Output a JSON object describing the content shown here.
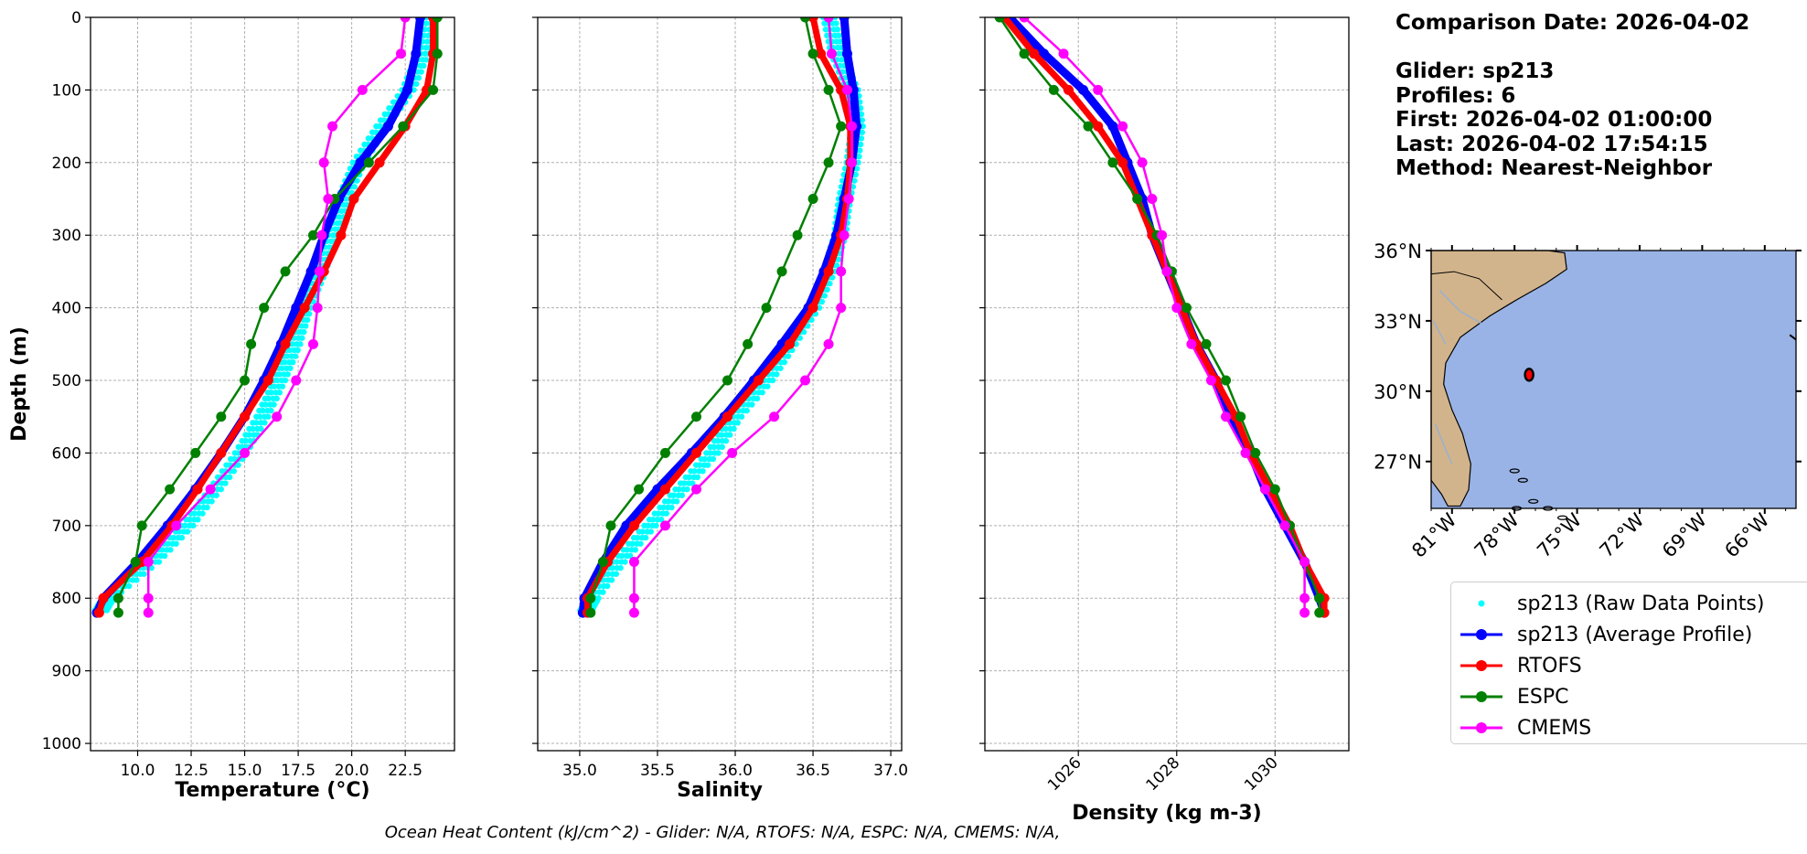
{
  "info": {
    "comparison_date": "Comparison Date: 2026-04-02",
    "glider": "Glider: sp213",
    "profiles": "Profiles: 6",
    "first": "First: 2026-04-02 01:00:00",
    "last": "Last: 2026-04-02 17:54:15",
    "method": "Method: Nearest-Neighbor"
  },
  "footer": "Ocean Heat Content (kJ/cm^2) - Glider: N/A,  RTOFS: N/A,  ESPC: N/A,  CMEMS: N/A,",
  "colors": {
    "glider_raw": "#00ffff",
    "glider_avg": "#0000ff",
    "rtofs": "#ff0000",
    "espc": "#008000",
    "cmems": "#ff00ff",
    "land": "#d2b48c",
    "ocean": "#99b3e6"
  },
  "legend": [
    {
      "label": "sp213 (Raw Data Points)",
      "color": "#00ffff",
      "style": "dot"
    },
    {
      "label": "sp213 (Average Profile)",
      "color": "#0000ff",
      "style": "line-marker"
    },
    {
      "label": "RTOFS",
      "color": "#ff0000",
      "style": "line-marker"
    },
    {
      "label": "ESPC",
      "color": "#008000",
      "style": "line-marker"
    },
    {
      "label": "CMEMS",
      "color": "#ff00ff",
      "style": "line-marker"
    }
  ],
  "chart_data": [
    {
      "type": "line",
      "xlabel": "Temperature (°C)",
      "ylabel": "Depth (m)",
      "xlim": [
        7.8,
        24.8
      ],
      "ylim": [
        1010,
        0
      ],
      "xticks": [
        "10.0",
        "12.5",
        "15.0",
        "17.5",
        "20.0",
        "22.5"
      ],
      "yticks": [
        "0",
        "100",
        "200",
        "300",
        "400",
        "500",
        "600",
        "700",
        "800",
        "900",
        "1000"
      ],
      "grid": true,
      "depth": [
        0,
        50,
        100,
        150,
        200,
        250,
        300,
        350,
        400,
        450,
        500,
        550,
        600,
        650,
        700,
        750,
        800,
        820
      ],
      "series": [
        {
          "name": "sp213 (Raw Data Points)",
          "values": [
            23.6,
            23.3,
            22.6,
            21.4,
            20.3,
            19.6,
            19.0,
            18.5,
            17.8,
            17.3,
            16.6,
            15.8,
            14.8,
            13.6,
            12.3,
            10.7,
            8.6,
            8.2
          ]
        },
        {
          "name": "sp213 (Average Profile)",
          "values": [
            23.2,
            23.0,
            22.6,
            21.7,
            20.4,
            19.4,
            18.7,
            18.1,
            17.4,
            16.7,
            15.9,
            15.0,
            13.9,
            12.7,
            11.4,
            10.0,
            8.4,
            8.1
          ]
        },
        {
          "name": "RTOFS",
          "values": [
            23.8,
            23.8,
            23.5,
            22.5,
            21.3,
            20.1,
            19.5,
            18.7,
            17.8,
            16.9,
            16.1,
            15.0,
            13.9,
            12.8,
            11.6,
            10.2,
            8.4,
            8.2
          ]
        },
        {
          "name": "ESPC",
          "values": [
            24.0,
            24.0,
            23.8,
            22.4,
            20.8,
            19.2,
            18.2,
            16.9,
            15.9,
            15.3,
            15.0,
            13.9,
            12.7,
            11.5,
            10.2,
            9.9,
            9.1,
            9.1
          ]
        },
        {
          "name": "CMEMS",
          "values": [
            22.5,
            22.3,
            20.5,
            19.1,
            18.7,
            18.9,
            18.6,
            18.5,
            18.4,
            18.2,
            17.4,
            16.5,
            15.0,
            13.4,
            11.8,
            10.5,
            10.5,
            10.5
          ]
        }
      ]
    },
    {
      "type": "line",
      "xlabel": "Salinity",
      "xlim": [
        34.73,
        37.07
      ],
      "ylim": [
        1010,
        0
      ],
      "xticks": [
        "35.0",
        "35.5",
        "36.0",
        "36.5",
        "37.0"
      ],
      "grid": true,
      "depth": [
        0,
        50,
        100,
        150,
        200,
        250,
        300,
        350,
        400,
        450,
        500,
        550,
        600,
        650,
        700,
        750,
        800,
        820
      ],
      "series": [
        {
          "name": "sp213 (Raw Data Points)",
          "values": [
            36.6,
            36.65,
            36.75,
            36.78,
            36.75,
            36.7,
            36.67,
            36.6,
            36.5,
            36.35,
            36.2,
            36.0,
            35.85,
            35.65,
            35.45,
            35.25,
            35.08,
            35.03
          ]
        },
        {
          "name": "sp213 (Average Profile)",
          "values": [
            36.7,
            36.72,
            36.76,
            36.78,
            36.75,
            36.7,
            36.65,
            36.57,
            36.47,
            36.3,
            36.12,
            35.93,
            35.72,
            35.5,
            35.3,
            35.15,
            35.03,
            35.02
          ]
        },
        {
          "name": "RTOFS",
          "values": [
            36.5,
            36.55,
            36.68,
            36.74,
            36.74,
            36.72,
            36.68,
            36.6,
            36.5,
            36.35,
            36.15,
            35.95,
            35.75,
            35.55,
            35.35,
            35.18,
            35.05,
            35.05
          ]
        },
        {
          "name": "ESPC",
          "values": [
            36.45,
            36.5,
            36.6,
            36.68,
            36.6,
            36.5,
            36.4,
            36.3,
            36.2,
            36.08,
            35.95,
            35.75,
            35.55,
            35.38,
            35.2,
            35.15,
            35.07,
            35.07
          ]
        },
        {
          "name": "CMEMS",
          "values": [
            36.6,
            36.62,
            36.72,
            36.75,
            36.75,
            36.73,
            36.7,
            36.68,
            36.68,
            36.6,
            36.45,
            36.25,
            35.98,
            35.75,
            35.55,
            35.35,
            35.35,
            35.35
          ]
        }
      ]
    },
    {
      "type": "line",
      "xlabel": "Density (kg m-3)",
      "xlim": [
        1024.1,
        1031.5
      ],
      "ylim": [
        1010,
        0
      ],
      "xticks": [
        "1026",
        "1028",
        "1030"
      ],
      "grid": true,
      "depth": [
        0,
        50,
        100,
        150,
        200,
        250,
        300,
        350,
        400,
        450,
        500,
        550,
        600,
        650,
        700,
        750,
        800,
        820
      ],
      "series": [
        {
          "name": "sp213 (Average Profile)",
          "values": [
            1024.6,
            1025.3,
            1026.1,
            1026.7,
            1027.0,
            1027.3,
            1027.5,
            1027.8,
            1028.1,
            1028.4,
            1028.8,
            1029.1,
            1029.5,
            1029.8,
            1030.2,
            1030.6,
            1030.9,
            1031.0
          ]
        },
        {
          "name": "RTOFS",
          "values": [
            1024.5,
            1025.1,
            1025.8,
            1026.4,
            1026.9,
            1027.2,
            1027.5,
            1027.8,
            1028.1,
            1028.4,
            1028.8,
            1029.2,
            1029.5,
            1029.9,
            1030.3,
            1030.6,
            1031.0,
            1031.0
          ]
        },
        {
          "name": "ESPC",
          "values": [
            1024.4,
            1024.9,
            1025.5,
            1026.2,
            1026.7,
            1027.2,
            1027.6,
            1027.9,
            1028.2,
            1028.6,
            1029.0,
            1029.3,
            1029.6,
            1030.0,
            1030.3,
            1030.6,
            1030.9,
            1030.9
          ]
        },
        {
          "name": "CMEMS",
          "values": [
            1024.9,
            1025.7,
            1026.4,
            1026.9,
            1027.3,
            1027.5,
            1027.7,
            1027.8,
            1028.0,
            1028.3,
            1028.7,
            1029.0,
            1029.4,
            1029.8,
            1030.2,
            1030.6,
            1030.6,
            1030.6
          ]
        }
      ]
    },
    {
      "type": "map",
      "lon_range": [
        -82,
        -64.5
      ],
      "lat_range": [
        25,
        36
      ],
      "xticks": [
        "81°W",
        "78°W",
        "75°W",
        "72°W",
        "69°W",
        "66°W"
      ],
      "yticks": [
        "36°N",
        "33°N",
        "30°N",
        "27°N"
      ],
      "glider_position": {
        "lon": -77.3,
        "lat": 30.7
      }
    }
  ]
}
